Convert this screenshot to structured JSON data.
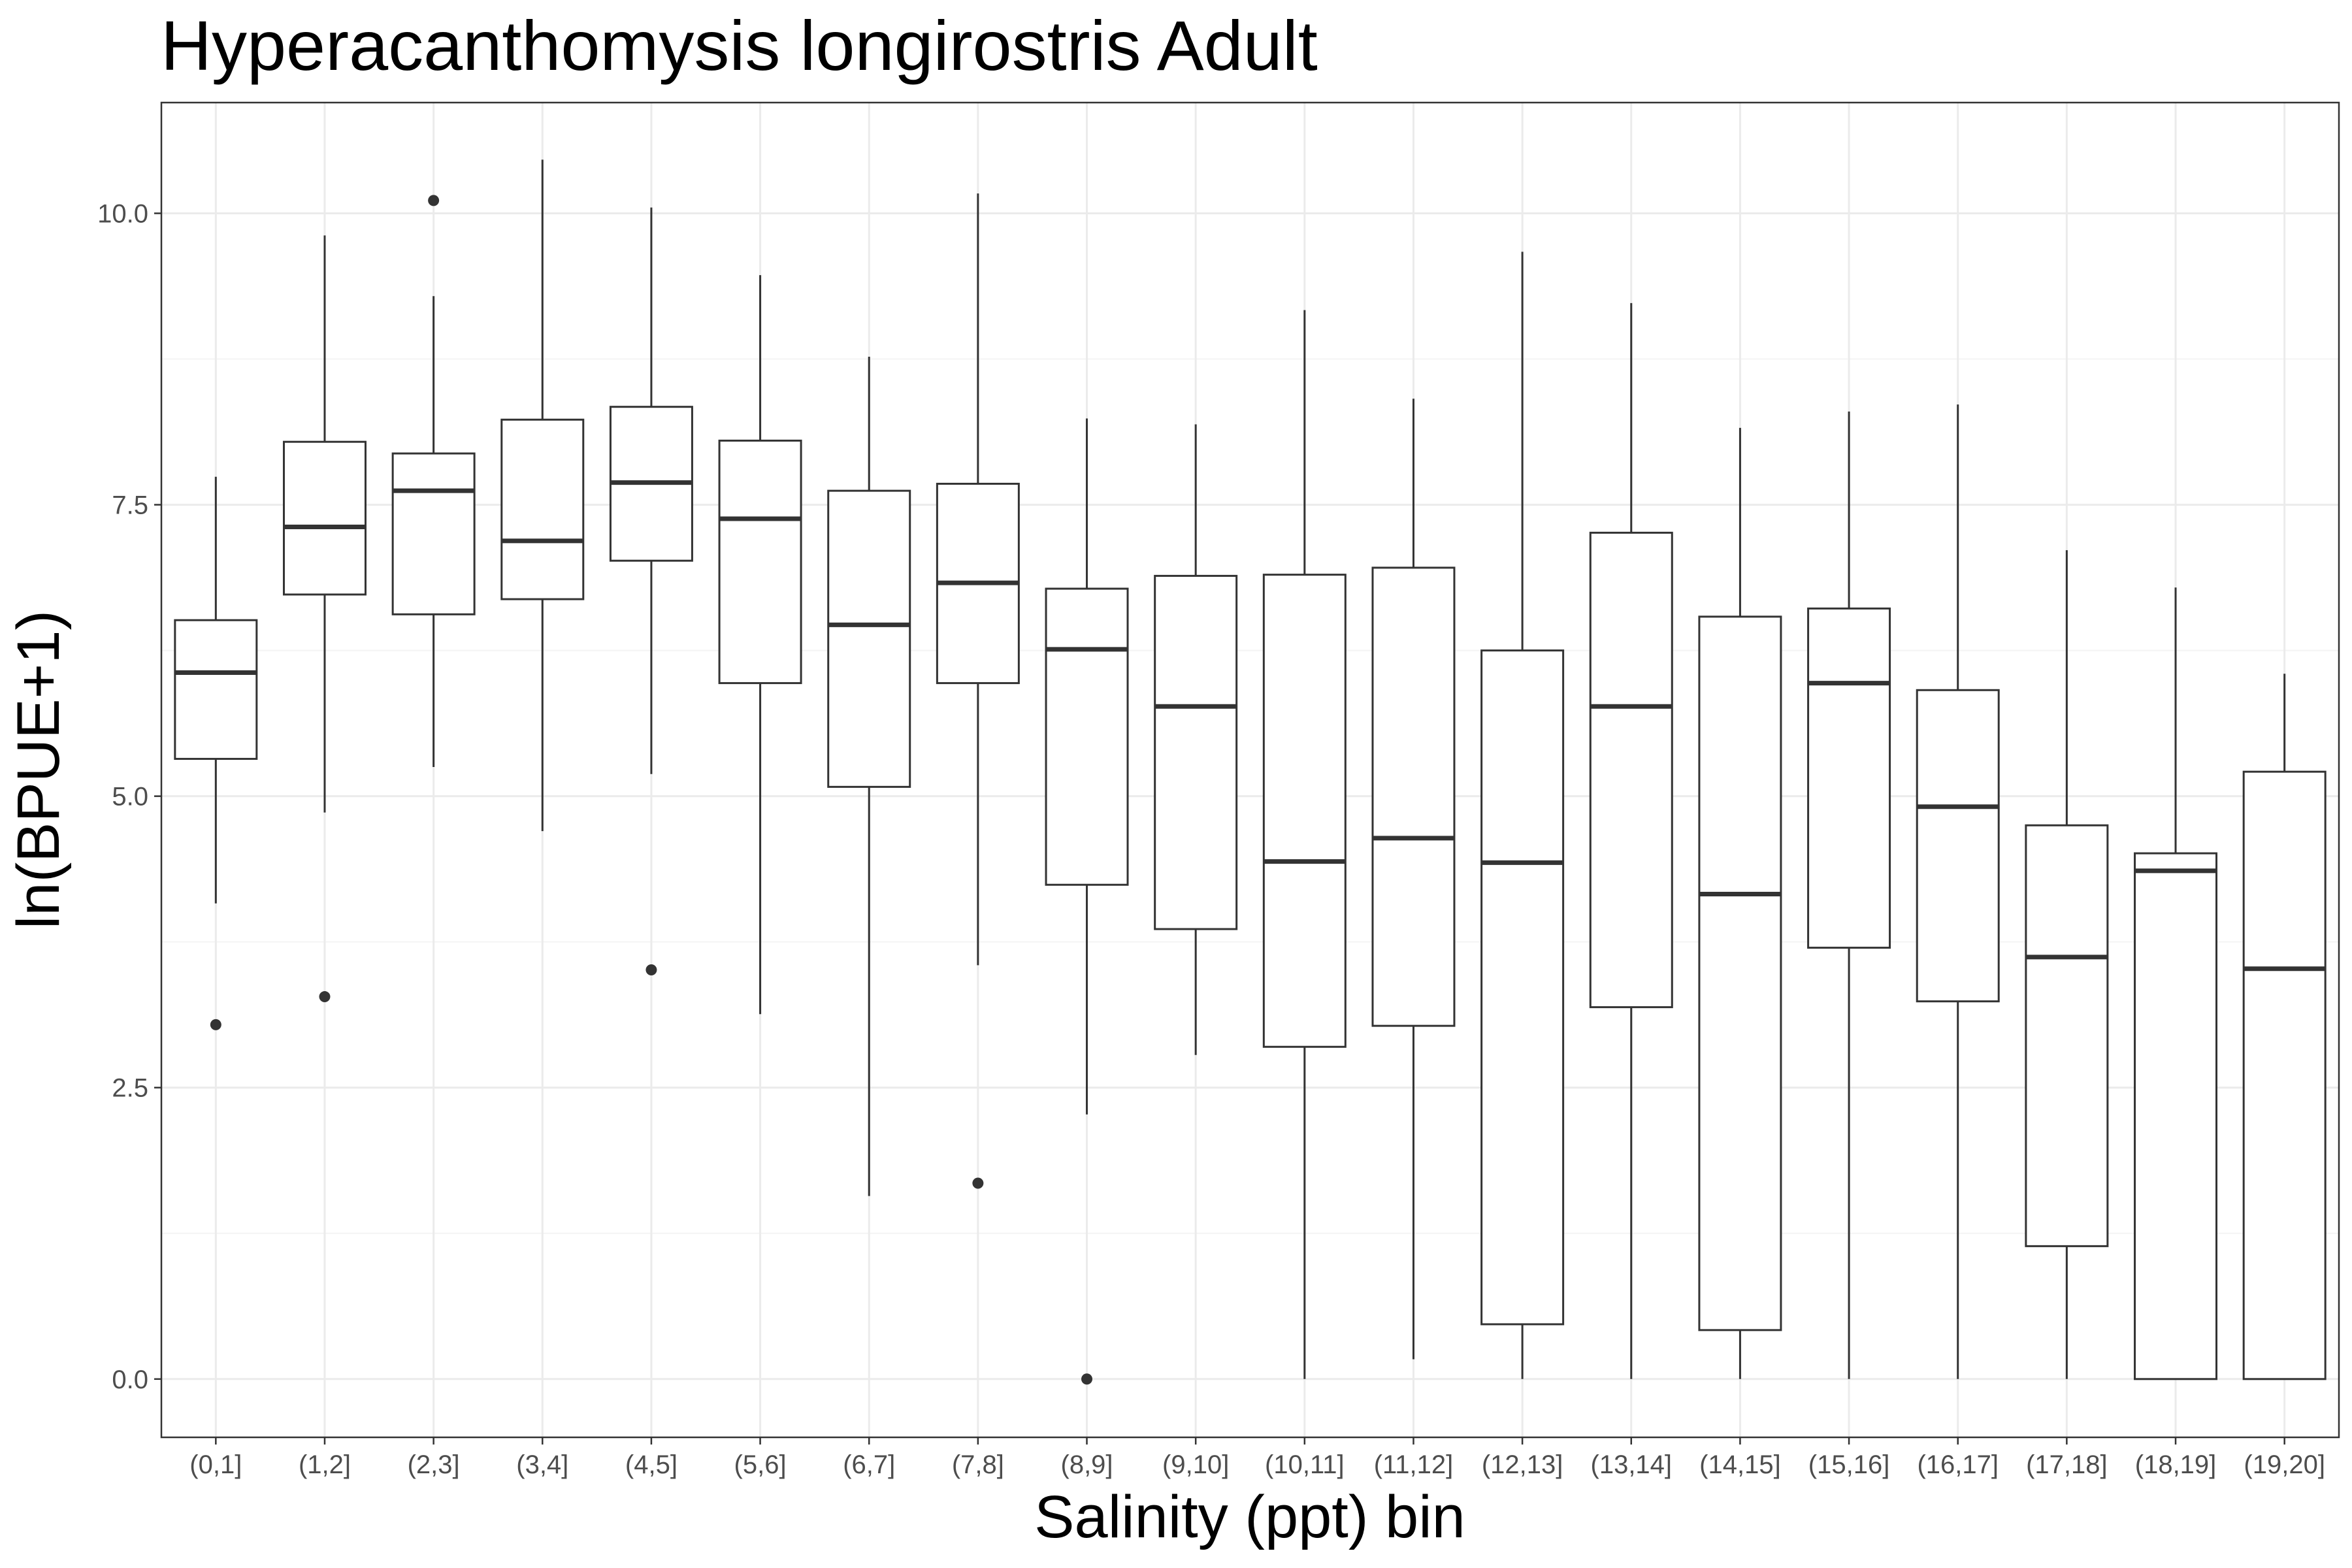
{
  "chart_data": {
    "type": "boxplot",
    "title": "Hyperacanthomysis longirostris Adult",
    "xlabel": "Salinity (ppt) bin",
    "ylabel": "ln(BPUE+1)",
    "ylim": [
      -0.5,
      10.95
    ],
    "yticks": [
      0.0,
      2.5,
      5.0,
      7.5,
      10.0
    ],
    "ytick_labels": [
      "0.0",
      "2.5",
      "5.0",
      "7.5",
      "10.0"
    ],
    "grid": true,
    "categories": [
      "(0,1]",
      "(1,2]",
      "(2,3]",
      "(3,4]",
      "(4,5]",
      "(5,6]",
      "(6,7]",
      "(7,8]",
      "(8,9]",
      "(9,10]",
      "(10,11]",
      "(11,12]",
      "(12,13]",
      "(13,14]",
      "(14,15]",
      "(15,16]",
      "(16,17]",
      "(17,18]",
      "(18,19]",
      "(19,20]"
    ],
    "boxes": [
      {
        "category": "(0,1]",
        "whisker_low": 4.08,
        "q1": 5.32,
        "median": 6.06,
        "q3": 6.51,
        "whisker_high": 7.74,
        "outliers": [
          3.04
        ]
      },
      {
        "category": "(1,2]",
        "whisker_low": 4.86,
        "q1": 6.73,
        "median": 7.31,
        "q3": 8.04,
        "whisker_high": 9.81,
        "outliers": [
          3.28
        ]
      },
      {
        "category": "(2,3]",
        "whisker_low": 5.25,
        "q1": 6.56,
        "median": 7.62,
        "q3": 7.94,
        "whisker_high": 9.29,
        "outliers": [
          10.11
        ]
      },
      {
        "category": "(3,4]",
        "whisker_low": 4.7,
        "q1": 6.69,
        "median": 7.19,
        "q3": 8.23,
        "whisker_high": 10.46,
        "outliers": []
      },
      {
        "category": "(4,5]",
        "whisker_low": 5.19,
        "q1": 7.02,
        "median": 7.69,
        "q3": 8.34,
        "whisker_high": 10.05,
        "outliers": [
          3.51
        ]
      },
      {
        "category": "(5,6]",
        "whisker_low": 3.13,
        "q1": 5.97,
        "median": 7.38,
        "q3": 8.05,
        "whisker_high": 9.47,
        "outliers": []
      },
      {
        "category": "(6,7]",
        "whisker_low": 1.57,
        "q1": 5.08,
        "median": 6.47,
        "q3": 7.62,
        "whisker_high": 8.77,
        "outliers": []
      },
      {
        "category": "(7,8]",
        "whisker_low": 3.55,
        "q1": 5.97,
        "median": 6.83,
        "q3": 7.68,
        "whisker_high": 10.17,
        "outliers": [
          1.68
        ]
      },
      {
        "category": "(8,9]",
        "whisker_low": 2.27,
        "q1": 4.24,
        "median": 6.26,
        "q3": 6.78,
        "whisker_high": 8.24,
        "outliers": [
          0.0
        ]
      },
      {
        "category": "(9,10]",
        "whisker_low": 2.78,
        "q1": 3.86,
        "median": 5.77,
        "q3": 6.89,
        "whisker_high": 8.19,
        "outliers": []
      },
      {
        "category": "(10,11]",
        "whisker_low": 0.0,
        "q1": 2.85,
        "median": 4.44,
        "q3": 6.9,
        "whisker_high": 9.17,
        "outliers": []
      },
      {
        "category": "(11,12]",
        "whisker_low": 0.17,
        "q1": 3.03,
        "median": 4.64,
        "q3": 6.96,
        "whisker_high": 8.41,
        "outliers": []
      },
      {
        "category": "(12,13]",
        "whisker_low": 0.0,
        "q1": 0.47,
        "median": 4.43,
        "q3": 6.25,
        "whisker_high": 9.67,
        "outliers": []
      },
      {
        "category": "(13,14]",
        "whisker_low": 0.0,
        "q1": 3.19,
        "median": 5.77,
        "q3": 7.26,
        "whisker_high": 9.23,
        "outliers": []
      },
      {
        "category": "(14,15]",
        "whisker_low": 0.0,
        "q1": 0.42,
        "median": 4.16,
        "q3": 6.54,
        "whisker_high": 8.16,
        "outliers": []
      },
      {
        "category": "(15,16]",
        "whisker_low": 0.0,
        "q1": 3.7,
        "median": 5.97,
        "q3": 6.61,
        "whisker_high": 8.3,
        "outliers": []
      },
      {
        "category": "(16,17]",
        "whisker_low": 0.0,
        "q1": 3.24,
        "median": 4.91,
        "q3": 5.91,
        "whisker_high": 8.36,
        "outliers": []
      },
      {
        "category": "(17,18]",
        "whisker_low": 0.0,
        "q1": 1.14,
        "median": 3.62,
        "q3": 4.75,
        "whisker_high": 7.11,
        "outliers": []
      },
      {
        "category": "(18,19]",
        "whisker_low": 0.0,
        "q1": 0.0,
        "median": 4.36,
        "q3": 4.51,
        "whisker_high": 6.79,
        "outliers": []
      },
      {
        "category": "(19,20]",
        "whisker_low": 0.0,
        "q1": 0.0,
        "median": 3.52,
        "q3": 5.21,
        "whisker_high": 6.05,
        "outliers": []
      }
    ]
  }
}
